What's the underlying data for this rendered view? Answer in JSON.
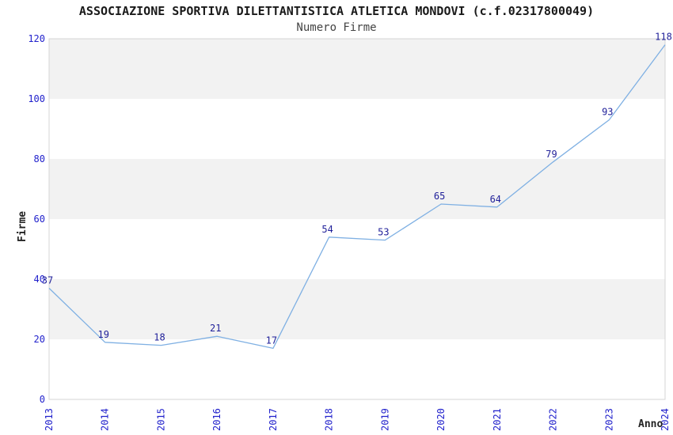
{
  "chart_data": {
    "type": "line",
    "title": "ASSOCIAZIONE SPORTIVA DILETTANTISTICA ATLETICA MONDOVI (c.f.02317800049)",
    "subtitle": "Numero Firme",
    "xlabel": "Anno",
    "ylabel": "Firme",
    "categories": [
      "2013",
      "2014",
      "2015",
      "2016",
      "2017",
      "2018",
      "2019",
      "2020",
      "2021",
      "2022",
      "2023",
      "2024"
    ],
    "series": [
      {
        "name": "Numero Firme",
        "values": [
          37,
          19,
          18,
          21,
          17,
          54,
          53,
          65,
          64,
          79,
          93,
          118
        ]
      }
    ],
    "ylim": [
      0,
      120
    ],
    "ytick_step": 20,
    "yticks": [
      0,
      20,
      40,
      60,
      80,
      100,
      120
    ],
    "grid": "alternating-horizontal-bands",
    "legend": "none",
    "data_labels": true,
    "colors": {
      "line": "#7fb0e3",
      "tick_labels": "#2222cc",
      "data_labels": "#1f1f99",
      "band": "#f2f2f2",
      "plot_border": "#d4d4d4",
      "title": "#1a1a1a",
      "subtitle": "#444444",
      "axis_titles": "#222222",
      "background": "#ffffff"
    }
  }
}
